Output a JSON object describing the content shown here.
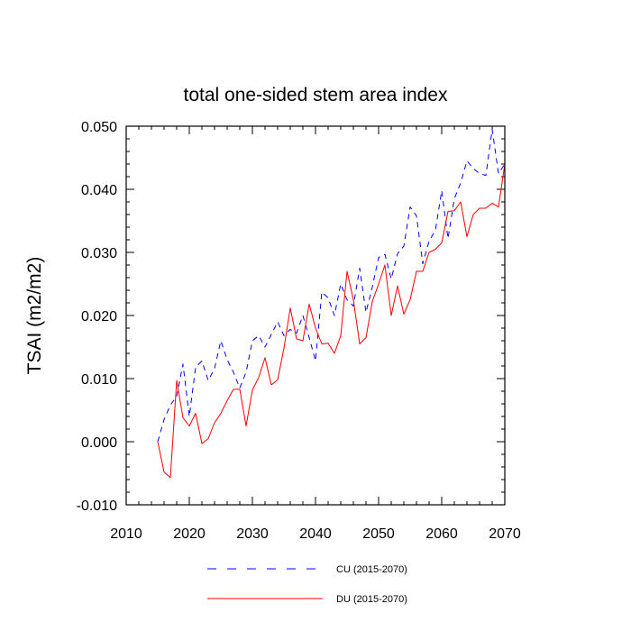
{
  "chart_data": {
    "type": "line",
    "title": "total one-sided stem area index",
    "xlabel": "",
    "ylabel": "TSAI  (m2/m2)",
    "xlim": [
      2010,
      2070
    ],
    "ylim": [
      -0.01,
      0.05
    ],
    "x_ticks": [
      2010,
      2020,
      2030,
      2040,
      2050,
      2060,
      2070
    ],
    "x_tick_labels": [
      "2010",
      "2020",
      "2030",
      "2040",
      "2050",
      "2060",
      "2070"
    ],
    "y_ticks": [
      -0.01,
      0.0,
      0.01,
      0.02,
      0.03,
      0.04,
      0.05
    ],
    "y_tick_labels": [
      "-0.010",
      "0.000",
      "0.010",
      "0.020",
      "0.030",
      "0.040",
      "0.050"
    ],
    "legend_position": "bottom-center",
    "x": [
      2015,
      2016,
      2017,
      2018,
      2019,
      2020,
      2021,
      2022,
      2023,
      2024,
      2025,
      2026,
      2027,
      2028,
      2029,
      2030,
      2031,
      2032,
      2033,
      2034,
      2035,
      2036,
      2037,
      2038,
      2039,
      2040,
      2041,
      2042,
      2043,
      2044,
      2045,
      2046,
      2047,
      2048,
      2049,
      2050,
      2051,
      2052,
      2053,
      2054,
      2055,
      2056,
      2057,
      2058,
      2059,
      2060,
      2061,
      2062,
      2063,
      2064,
      2065,
      2066,
      2067,
      2068,
      2069,
      2070
    ],
    "series": [
      {
        "name": "CU (2015-2070)",
        "color": "#0000ff",
        "dash": "dashed",
        "values": [
          0.0,
          0.0035,
          0.0058,
          0.0072,
          0.0123,
          0.004,
          0.0118,
          0.0128,
          0.0097,
          0.0116,
          0.016,
          0.013,
          0.011,
          0.0085,
          0.011,
          0.016,
          0.0168,
          0.015,
          0.017,
          0.019,
          0.0168,
          0.0178,
          0.0172,
          0.02,
          0.0165,
          0.0128,
          0.0237,
          0.0228,
          0.02,
          0.025,
          0.0225,
          0.0215,
          0.0275,
          0.0205,
          0.0245,
          0.0292,
          0.0297,
          0.0258,
          0.0298,
          0.031,
          0.0372,
          0.0358,
          0.0282,
          0.0318,
          0.0335,
          0.0398,
          0.0322,
          0.0385,
          0.041,
          0.0445,
          0.0433,
          0.0425,
          0.0422,
          0.0495,
          0.0425,
          0.044
        ]
      },
      {
        "name": "DU (2015-2070)",
        "color": "#ff0000",
        "dash": "solid",
        "values": [
          0.0,
          -0.0048,
          -0.0057,
          0.0097,
          0.0038,
          0.0025,
          0.0045,
          -0.0003,
          0.0005,
          0.003,
          0.0045,
          0.0065,
          0.0083,
          0.0083,
          0.0025,
          0.0082,
          0.0102,
          0.0133,
          0.009,
          0.0098,
          0.0148,
          0.0212,
          0.0163,
          0.016,
          0.0218,
          0.018,
          0.0155,
          0.0156,
          0.014,
          0.0168,
          0.027,
          0.0225,
          0.0155,
          0.0165,
          0.0222,
          0.025,
          0.028,
          0.02,
          0.0247,
          0.0202,
          0.0225,
          0.027,
          0.027,
          0.03,
          0.0305,
          0.0315,
          0.0365,
          0.0366,
          0.038,
          0.0325,
          0.036,
          0.037,
          0.037,
          0.0378,
          0.0372,
          0.044
        ]
      }
    ]
  }
}
